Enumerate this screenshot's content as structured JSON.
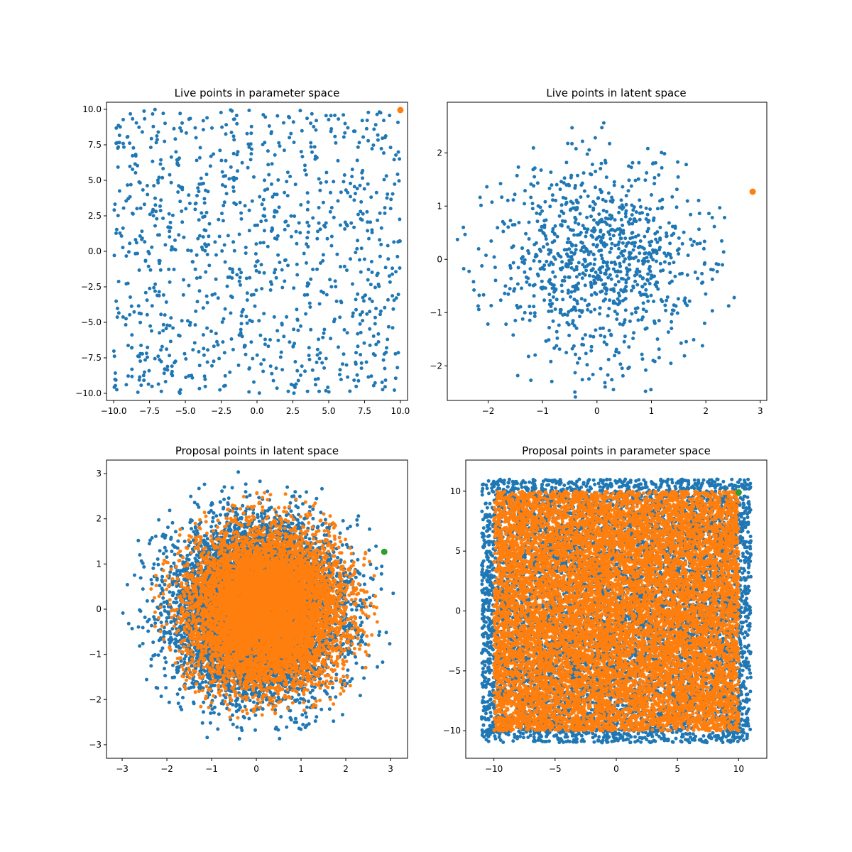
{
  "colors": {
    "blue": "#1f77b4",
    "orange": "#ff7f0e",
    "green": "#2ca02c"
  },
  "chart_data": [
    {
      "id": "live-param",
      "type": "scatter",
      "title": "Live points in parameter space",
      "xlabel": "",
      "ylabel": "",
      "xlim": [
        -10.5,
        10.5
      ],
      "ylim": [
        -10.5,
        10.5
      ],
      "xticks": [
        -10.0,
        -7.5,
        -5.0,
        -2.5,
        0.0,
        2.5,
        5.0,
        7.5,
        10.0
      ],
      "xtick_labels": [
        "−10.0",
        "−7.5",
        "−5.0",
        "−2.5",
        "0.0",
        "2.5",
        "5.0",
        "7.5",
        "10.0"
      ],
      "yticks": [
        -10.0,
        -7.5,
        -5.0,
        -2.5,
        0.0,
        2.5,
        5.0,
        7.5,
        10.0
      ],
      "ytick_labels": [
        "−10.0",
        "−7.5",
        "−5.0",
        "−2.5",
        "0.0",
        "2.5",
        "5.0",
        "7.5",
        "10.0"
      ],
      "grid": false,
      "series": [
        {
          "color": "blue",
          "marker_r": 2.5,
          "distribution": "uniform_square",
          "count": 1000,
          "center": [
            0,
            0
          ],
          "half_width": 10,
          "seed": 11
        },
        {
          "color": "orange",
          "marker_r": 4.5,
          "points": [
            [
              10.0,
              9.95
            ]
          ]
        }
      ]
    },
    {
      "id": "live-latent",
      "type": "scatter",
      "title": "Live points in latent space",
      "xlabel": "",
      "ylabel": "",
      "xlim": [
        -2.75,
        3.12
      ],
      "ylim": [
        -2.65,
        2.95
      ],
      "xticks": [
        -2,
        -1,
        0,
        1,
        2,
        3
      ],
      "xtick_labels": [
        "−2",
        "−1",
        "0",
        "1",
        "2",
        "3"
      ],
      "yticks": [
        -2,
        -1,
        0,
        1,
        2
      ],
      "ytick_labels": [
        "−2",
        "−1",
        "0",
        "1",
        "2"
      ],
      "grid": false,
      "series": [
        {
          "color": "blue",
          "marker_r": 2.5,
          "distribution": "gaussian_disk",
          "count": 1000,
          "center": [
            0,
            0
          ],
          "sigma": 0.95,
          "radius": 2.65,
          "seed": 23
        },
        {
          "color": "orange",
          "marker_r": 4.5,
          "points": [
            [
              2.86,
              1.27
            ]
          ]
        }
      ]
    },
    {
      "id": "proposal-latent",
      "type": "scatter",
      "title": "Proposal points in latent space",
      "xlabel": "",
      "ylabel": "",
      "xlim": [
        -3.35,
        3.38
      ],
      "ylim": [
        -3.3,
        3.3
      ],
      "xticks": [
        -3,
        -2,
        -1,
        0,
        1,
        2,
        3
      ],
      "xtick_labels": [
        "−3",
        "−2",
        "−1",
        "0",
        "1",
        "2",
        "3"
      ],
      "yticks": [
        -3,
        -2,
        -1,
        0,
        1,
        2,
        3
      ],
      "ytick_labels": [
        "−3",
        "−2",
        "−1",
        "0",
        "1",
        "2",
        "3"
      ],
      "grid": false,
      "series": [
        {
          "color": "blue",
          "marker_r": 2.5,
          "distribution": "gaussian_disk",
          "count": 9000,
          "center": [
            0,
            0
          ],
          "sigma": 0.9,
          "radius": 3.1,
          "seed": 37
        },
        {
          "color": "orange",
          "marker_r": 2.5,
          "distribution": "gaussian_disk",
          "count": 7500,
          "center": [
            0.2,
            0
          ],
          "sigma": 0.85,
          "radius": 2.6,
          "seed": 41
        },
        {
          "color": "green",
          "marker_r": 4.5,
          "points": [
            [
              2.86,
              1.27
            ]
          ]
        }
      ]
    },
    {
      "id": "proposal-param",
      "type": "scatter",
      "title": "Proposal points in parameter space",
      "xlabel": "",
      "ylabel": "",
      "xlim": [
        -12.3,
        12.3
      ],
      "ylim": [
        -12.3,
        12.6
      ],
      "xticks": [
        -10,
        -5,
        0,
        5,
        10
      ],
      "xtick_labels": [
        "−10",
        "−5",
        "0",
        "5",
        "10"
      ],
      "yticks": [
        -10,
        -5,
        0,
        5,
        10
      ],
      "ytick_labels": [
        "−10",
        "−5",
        "0",
        "5",
        "10"
      ],
      "grid": false,
      "series": [
        {
          "color": "blue",
          "marker_r": 2.5,
          "distribution": "uniform_square",
          "count": 7000,
          "center": [
            0,
            0
          ],
          "half_width": 11,
          "seed": 53
        },
        {
          "color": "orange",
          "marker_r": 2.5,
          "distribution": "uniform_square",
          "count": 11000,
          "center": [
            0,
            0
          ],
          "half_width": 10,
          "seed": 59
        },
        {
          "color": "green",
          "marker_r": 4.5,
          "points": [
            [
              10.0,
              9.9
            ]
          ]
        }
      ]
    }
  ]
}
